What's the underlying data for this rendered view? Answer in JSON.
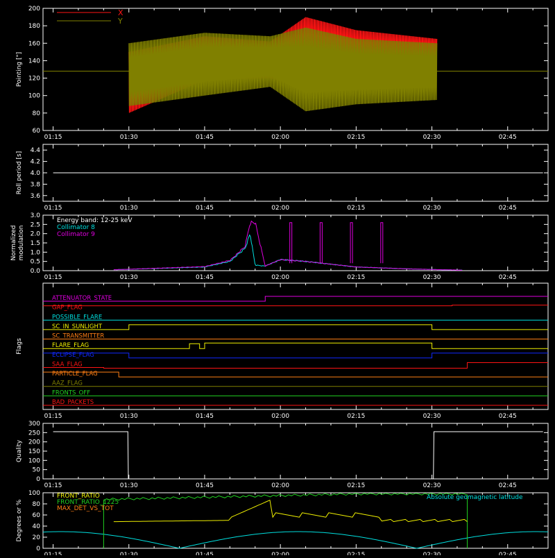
{
  "colors": {
    "bg": "#000000",
    "axis": "#ffffff",
    "red": "#ff1414",
    "olive": "#808000",
    "cyan": "#00e0e0",
    "magenta": "#e000e0",
    "yellow": "#f0f000",
    "green": "#20d020",
    "blue": "#1028ff",
    "orange": "#ff7f14",
    "white": "#ffffff"
  },
  "time_ticks": [
    "01:15",
    "01:30",
    "01:45",
    "02:00",
    "02:15",
    "02:30",
    "02:45"
  ],
  "chart_data": [
    {
      "id": "pointing",
      "type": "line",
      "ylabel": "Pointing [\"]",
      "ylim": [
        60,
        200
      ],
      "yticks": [
        "60",
        "80",
        "100",
        "120",
        "140",
        "160",
        "180",
        "200"
      ],
      "legend": [
        {
          "name": "X",
          "color": "red"
        },
        {
          "name": "Y",
          "color": "olive"
        }
      ],
      "series": [
        {
          "name": "X",
          "color": "red",
          "envelope_times": [
            "01:30",
            "01:45",
            "01:58",
            "02:05",
            "02:15",
            "02:31"
          ],
          "upper": [
            150,
            168,
            162,
            190,
            175,
            165
          ],
          "lower": [
            80,
            118,
            120,
            108,
            115,
            135
          ]
        },
        {
          "name": "Y",
          "color": "olive",
          "envelope_times": [
            "01:30",
            "01:45",
            "01:58",
            "02:05",
            "02:15",
            "02:31"
          ],
          "upper": [
            160,
            172,
            168,
            178,
            165,
            160
          ],
          "lower": [
            88,
            100,
            110,
            82,
            90,
            95
          ]
        }
      ],
      "reference_line": {
        "y": 128,
        "color": "olive"
      }
    },
    {
      "id": "roll",
      "type": "line",
      "ylabel": "Roll period [s]",
      "ylim": [
        3.5,
        4.5
      ],
      "yticks": [
        "3.6",
        "3.8",
        "4.0",
        "4.2",
        "4.4"
      ],
      "series": [
        {
          "name": "Roll period",
          "color": "white",
          "x": [
            "01:15",
            "02:52"
          ],
          "y": [
            4.0,
            4.0
          ]
        }
      ]
    },
    {
      "id": "modulation",
      "type": "line",
      "ylabel": "Normalized modulation",
      "ylim": [
        0.0,
        3.0
      ],
      "yticks": [
        "0.0",
        "0.5",
        "1.0",
        "1.5",
        "2.0",
        "2.5",
        "3.0"
      ],
      "legend": [
        {
          "name": "Energy band: 12-25 keV",
          "color": "white"
        },
        {
          "name": "Collimator 8",
          "color": "cyan"
        },
        {
          "name": "Collimator 9",
          "color": "magenta"
        }
      ],
      "series": [
        {
          "name": "Collimator 8",
          "color": "cyan",
          "x": [
            "01:27",
            "01:45",
            "01:50",
            "01:53",
            "01:54",
            "01:55",
            "01:57",
            "02:00",
            "02:05",
            "02:15",
            "02:25",
            "02:32",
            "02:36"
          ],
          "y": [
            0.05,
            0.2,
            0.5,
            1.2,
            2.0,
            0.3,
            0.25,
            0.6,
            0.5,
            0.2,
            0.1,
            0.05,
            0.03
          ]
        },
        {
          "name": "Collimator 9",
          "color": "magenta",
          "x": [
            "01:27",
            "01:45",
            "01:50",
            "01:53",
            "01:54",
            "01:55",
            "01:57",
            "02:00",
            "02:05",
            "02:15",
            "02:25",
            "02:32",
            "02:36"
          ],
          "y": [
            0.05,
            0.22,
            0.55,
            1.3,
            2.6,
            2.6,
            0.25,
            0.6,
            0.5,
            0.2,
            0.1,
            0.05,
            0.03
          ]
        }
      ]
    },
    {
      "id": "flags",
      "type": "line",
      "ylabel": "Flags",
      "flags": [
        {
          "name": "ATTENUATOR_STATE",
          "color": "magenta"
        },
        {
          "name": "GAP_FLAG",
          "color": "red"
        },
        {
          "name": "POSSIBLE_FLARE",
          "color": "cyan"
        },
        {
          "name": "SC_IN_SUNLIGHT",
          "color": "yellow"
        },
        {
          "name": "SC_TRANSMITTER",
          "color": "orange"
        },
        {
          "name": "FLARE_FLAG",
          "color": "yellow"
        },
        {
          "name": "ECLIPSE_FLAG",
          "color": "blue"
        },
        {
          "name": "SAA_FLAG",
          "color": "red"
        },
        {
          "name": "PARTICLE_FLAG",
          "color": "orange"
        },
        {
          "name": "AAZ_FLAG",
          "color": "olive"
        },
        {
          "name": "FRONTS_OFF",
          "color": "green"
        },
        {
          "name": "BAD_PACKETS",
          "color": "red"
        }
      ]
    },
    {
      "id": "quality",
      "type": "line",
      "ylabel": "Quality",
      "ylim": [
        0,
        300
      ],
      "yticks": [
        "0",
        "50",
        "100",
        "150",
        "200",
        "250",
        "300"
      ],
      "series": [
        {
          "name": "Quality",
          "color": "white",
          "x": [
            "01:15",
            "01:29.8",
            "01:29.9",
            "02:30.3",
            "02:30.4",
            "02:52"
          ],
          "y": [
            255,
            255,
            0,
            0,
            255,
            255
          ]
        }
      ]
    },
    {
      "id": "degrees",
      "type": "line",
      "ylabel": "Degrees or %",
      "ylim": [
        0,
        100
      ],
      "yticks": [
        "0",
        "20",
        "40",
        "60",
        "80",
        "100"
      ],
      "legend": [
        {
          "name": "FRONT_RATIO",
          "color": "yellow"
        },
        {
          "name": "FRONT_RATIO_1225",
          "color": "green"
        },
        {
          "name": "MAX_DET_VS_TOT",
          "color": "orange"
        },
        {
          "name": "Absolute geomagnetic latitude",
          "color": "cyan"
        }
      ]
    }
  ]
}
